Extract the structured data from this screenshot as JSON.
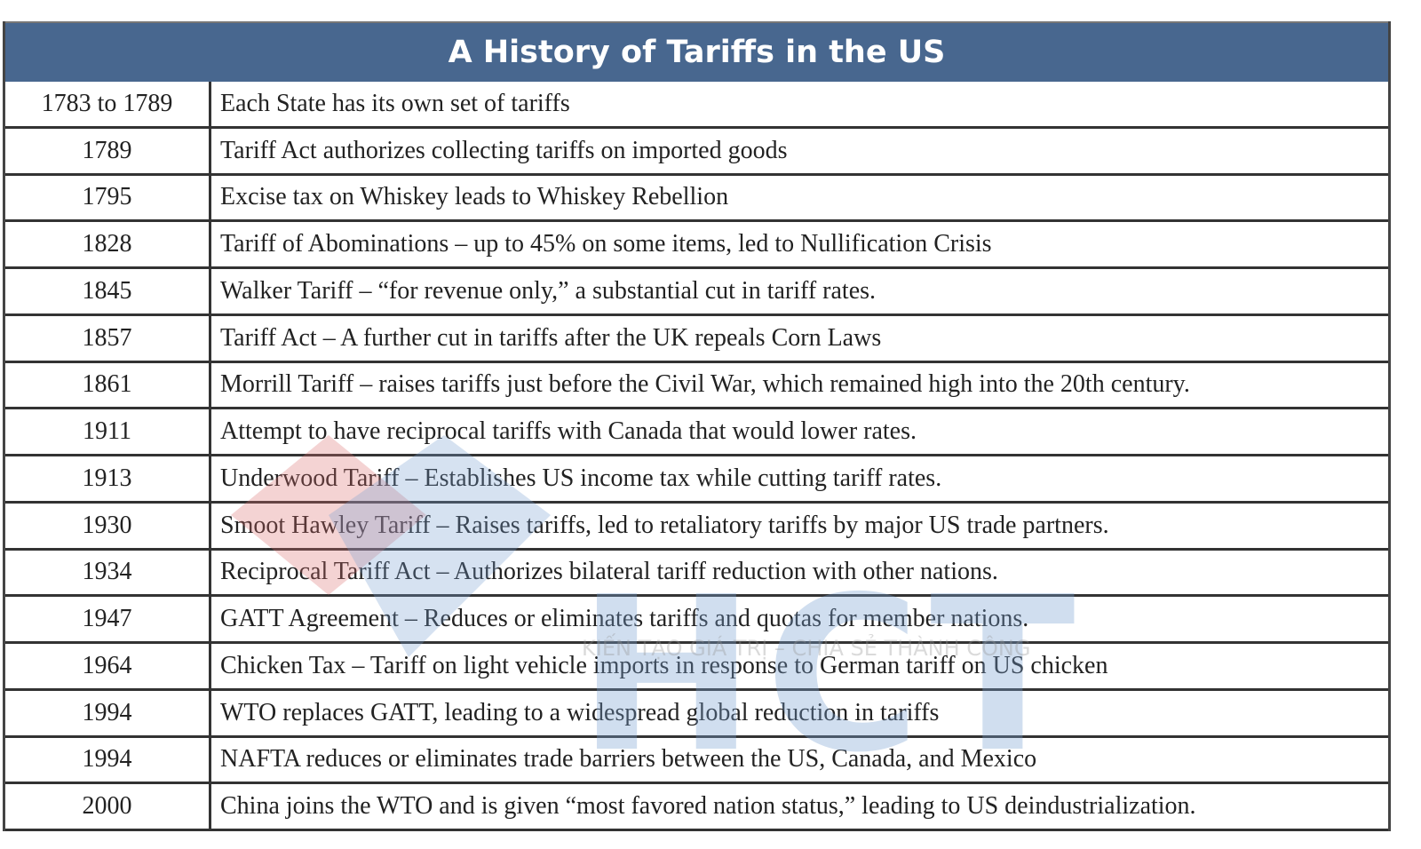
{
  "title": "A History of Tariffs in the US",
  "rows": [
    {
      "year": "1783 to 1789",
      "event": "Each State has its own set of tariffs"
    },
    {
      "year": "1789",
      "event": "Tariff Act authorizes collecting tariffs on imported goods"
    },
    {
      "year": "1795",
      "event": "Excise tax on Whiskey leads to Whiskey Rebellion"
    },
    {
      "year": "1828",
      "event": "Tariff of Abominations – up to 45% on some items, led to Nullification Crisis"
    },
    {
      "year": "1845",
      "event": "Walker Tariff – “for revenue only,” a substantial cut in tariff rates."
    },
    {
      "year": "1857",
      "event": "Tariff Act – A further cut in tariffs after the UK repeals Corn Laws"
    },
    {
      "year": "1861",
      "event": "Morrill Tariff – raises tariffs just before the Civil War, which remained high into the 20th century."
    },
    {
      "year": "1911",
      "event": "Attempt to have reciprocal tariffs with Canada that would lower rates."
    },
    {
      "year": "1913",
      "event": "Underwood Tariff – Establishes US income tax while cutting tariff rates."
    },
    {
      "year": "1930",
      "event": "Smoot Hawley Tariff – Raises tariffs, led to retaliatory tariffs by major US trade partners."
    },
    {
      "year": "1934",
      "event": "Reciprocal Tariff Act – Authorizes bilateral tariff reduction with other nations."
    },
    {
      "year": "1947",
      "event": "GATT Agreement – Reduces or eliminates tariffs and quotas for member nations."
    },
    {
      "year": "1964",
      "event": "Chicken Tax – Tariff on light vehicle imports in response to German tariff on US chicken"
    },
    {
      "year": "1994",
      "event": "WTO replaces GATT, leading to a widespread global reduction in tariffs"
    },
    {
      "year": "1994",
      "event": "NAFTA reduces or eliminates trade barriers between the US, Canada, and Mexico"
    },
    {
      "year": "2000",
      "event": "China joins the WTO and is given “most favored nation status,” leading to US deindustrialization."
    }
  ],
  "watermark": {
    "brand": "HCT",
    "slogan": "KIẾN TẠO GIÁ TRỊ – CHIA SẺ THÀNH CÔNG"
  }
}
